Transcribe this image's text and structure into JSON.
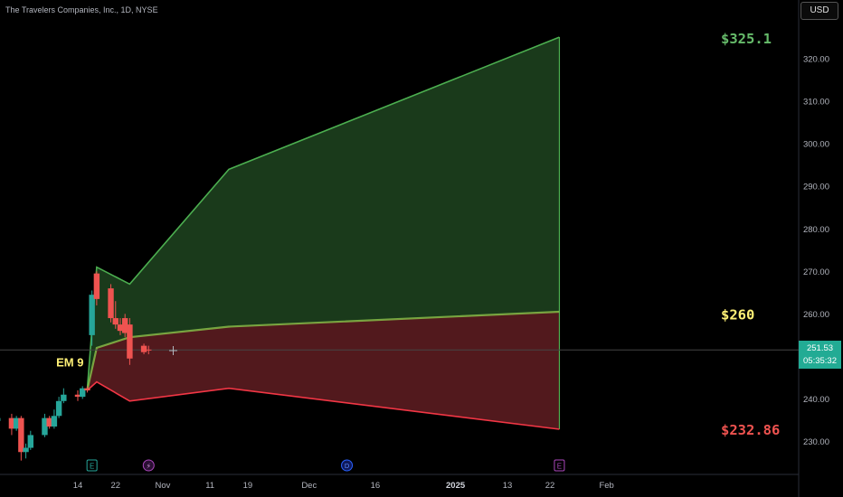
{
  "header": {
    "symbol_title": "The Travelers Companies, Inc., 1D, NYSE",
    "currency": "USD"
  },
  "price_badge": {
    "price": "251.53",
    "countdown": "05:35:32"
  },
  "colors": {
    "up_candle": "#26a69a",
    "down_candle": "#ef5350",
    "upper_band": "#4caf50",
    "lower_band": "#f23645",
    "upper_fill": "#1b3d1c",
    "lower_fill": "#561a1f",
    "mid_line": "#8bc34a",
    "label_upper": "#66bb6a",
    "label_mid": "#fff176",
    "label_lower": "#ef5350",
    "badge": "#22ab94"
  },
  "chart_data": {
    "type": "candlestick",
    "y_axis": {
      "min": 222,
      "max": 335,
      "ticks": [
        230,
        240,
        250,
        260,
        270,
        280,
        290,
        300,
        310,
        320
      ],
      "tick_labels": [
        "230.00",
        "240.00",
        "250.00",
        "260.00",
        "270.00",
        "280.00",
        "290.00",
        "300.00",
        "310.00",
        "320.00"
      ]
    },
    "x_axis": {
      "labels": [
        {
          "text": "14",
          "date": "2024-10-14",
          "bold": false
        },
        {
          "text": "22",
          "date": "2024-10-22",
          "bold": false
        },
        {
          "text": "Nov",
          "date": "2024-11-01",
          "bold": false
        },
        {
          "text": "11",
          "date": "2024-11-11",
          "bold": false
        },
        {
          "text": "19",
          "date": "2024-11-19",
          "bold": false
        },
        {
          "text": "Dec",
          "date": "2024-12-02",
          "bold": false
        },
        {
          "text": "16",
          "date": "2024-12-16",
          "bold": false
        },
        {
          "text": "2025",
          "date": "2025-01-02",
          "bold": true
        },
        {
          "text": "13",
          "date": "2025-01-13",
          "bold": false
        },
        {
          "text": "22",
          "date": "2025-01-22",
          "bold": false
        },
        {
          "text": "Feb",
          "date": "2025-02-03",
          "bold": false
        }
      ]
    },
    "candles": [
      {
        "date": "2024-09-26",
        "open": 234.5,
        "high": 235.5,
        "low": 233.5,
        "close": 234.8
      },
      {
        "date": "2024-09-27",
        "open": 234.8,
        "high": 236.2,
        "low": 233.8,
        "close": 235.5
      },
      {
        "date": "2024-09-30",
        "open": 235.5,
        "high": 236.5,
        "low": 231.5,
        "close": 233.0
      },
      {
        "date": "2024-10-01",
        "open": 233.0,
        "high": 236.0,
        "low": 232.5,
        "close": 235.5
      },
      {
        "date": "2024-10-02",
        "open": 235.5,
        "high": 236.0,
        "low": 225.5,
        "close": 227.5
      },
      {
        "date": "2024-10-03",
        "open": 227.5,
        "high": 229.5,
        "low": 226.0,
        "close": 228.5
      },
      {
        "date": "2024-10-04",
        "open": 228.5,
        "high": 232.5,
        "low": 228.0,
        "close": 231.5
      },
      {
        "date": "2024-10-07",
        "open": 231.5,
        "high": 236.5,
        "low": 231.0,
        "close": 235.5
      },
      {
        "date": "2024-10-08",
        "open": 235.5,
        "high": 236.0,
        "low": 233.0,
        "close": 233.5
      },
      {
        "date": "2024-10-09",
        "open": 233.5,
        "high": 237.5,
        "low": 233.0,
        "close": 236.0
      },
      {
        "date": "2024-10-10",
        "open": 236.0,
        "high": 240.5,
        "low": 235.5,
        "close": 239.5
      },
      {
        "date": "2024-10-11",
        "open": 239.5,
        "high": 242.5,
        "low": 239.0,
        "close": 241.0
      },
      {
        "date": "2024-10-14",
        "open": 241.0,
        "high": 242.0,
        "low": 239.5,
        "close": 240.5
      },
      {
        "date": "2024-10-15",
        "open": 240.5,
        "high": 243.0,
        "low": 240.0,
        "close": 242.5
      },
      {
        "date": "2024-10-16",
        "open": 242.5,
        "high": 243.0,
        "low": 241.5,
        "close": 242.0
      },
      {
        "date": "2024-10-17",
        "open": 255.0,
        "high": 265.5,
        "low": 252.5,
        "close": 264.5
      },
      {
        "date": "2024-10-18",
        "open": 269.5,
        "high": 270.0,
        "low": 262.0,
        "close": 263.5
      },
      {
        "date": "2024-10-21",
        "open": 266.0,
        "high": 267.0,
        "low": 258.0,
        "close": 259.0
      },
      {
        "date": "2024-10-22",
        "open": 259.0,
        "high": 263.0,
        "low": 256.5,
        "close": 257.5
      },
      {
        "date": "2024-10-23",
        "open": 257.5,
        "high": 259.0,
        "low": 255.0,
        "close": 256.0
      },
      {
        "date": "2024-10-24",
        "open": 259.0,
        "high": 260.0,
        "low": 254.5,
        "close": 255.5
      },
      {
        "date": "2024-10-25",
        "open": 257.5,
        "high": 259.0,
        "low": 248.0,
        "close": 249.5
      },
      {
        "date": "2024-10-28",
        "open": 252.5,
        "high": 253.0,
        "low": 250.5,
        "close": 251.0
      },
      {
        "date": "2024-10-29",
        "open": 251.6,
        "high": 252.5,
        "low": 250.5,
        "close": 251.53
      }
    ],
    "bands": {
      "upper": [
        {
          "date": "2024-10-16",
          "value": 242.0
        },
        {
          "date": "2024-10-18",
          "value": 271.0
        },
        {
          "date": "2024-10-25",
          "value": 267.0
        },
        {
          "date": "2024-11-15",
          "value": 294.0
        },
        {
          "date": "2025-01-24",
          "value": 325.1
        }
      ],
      "mid": [
        {
          "date": "2024-10-16",
          "value": 242.0
        },
        {
          "date": "2024-10-18",
          "value": 252.0
        },
        {
          "date": "2024-10-25",
          "value": 254.5
        },
        {
          "date": "2024-11-15",
          "value": 257.0
        },
        {
          "date": "2025-01-24",
          "value": 260.5
        }
      ],
      "lower": [
        {
          "date": "2024-10-16",
          "value": 242.0
        },
        {
          "date": "2024-10-18",
          "value": 244.0
        },
        {
          "date": "2024-10-25",
          "value": 239.5
        },
        {
          "date": "2024-11-15",
          "value": 242.5
        },
        {
          "date": "2025-01-24",
          "value": 232.86
        }
      ]
    },
    "labels": {
      "upper": {
        "text": "$325.1",
        "value": 325.1
      },
      "mid": {
        "text": "$260",
        "value": 260.0
      },
      "lower": {
        "text": "$232.86",
        "value": 232.86
      },
      "em": {
        "text": "EM 9",
        "date": "2024-10-16",
        "value": 248.7
      }
    },
    "current_price": 251.53,
    "event_markers": [
      {
        "symbol": "E",
        "date": "2024-10-17",
        "kind": "earnings"
      },
      {
        "symbol": "⚡",
        "date": "2024-10-29",
        "kind": "lightning"
      },
      {
        "symbol": "D",
        "date": "2024-12-10",
        "kind": "dividend"
      },
      {
        "symbol": "E",
        "date": "2025-01-24",
        "kind": "earnings"
      }
    ]
  }
}
